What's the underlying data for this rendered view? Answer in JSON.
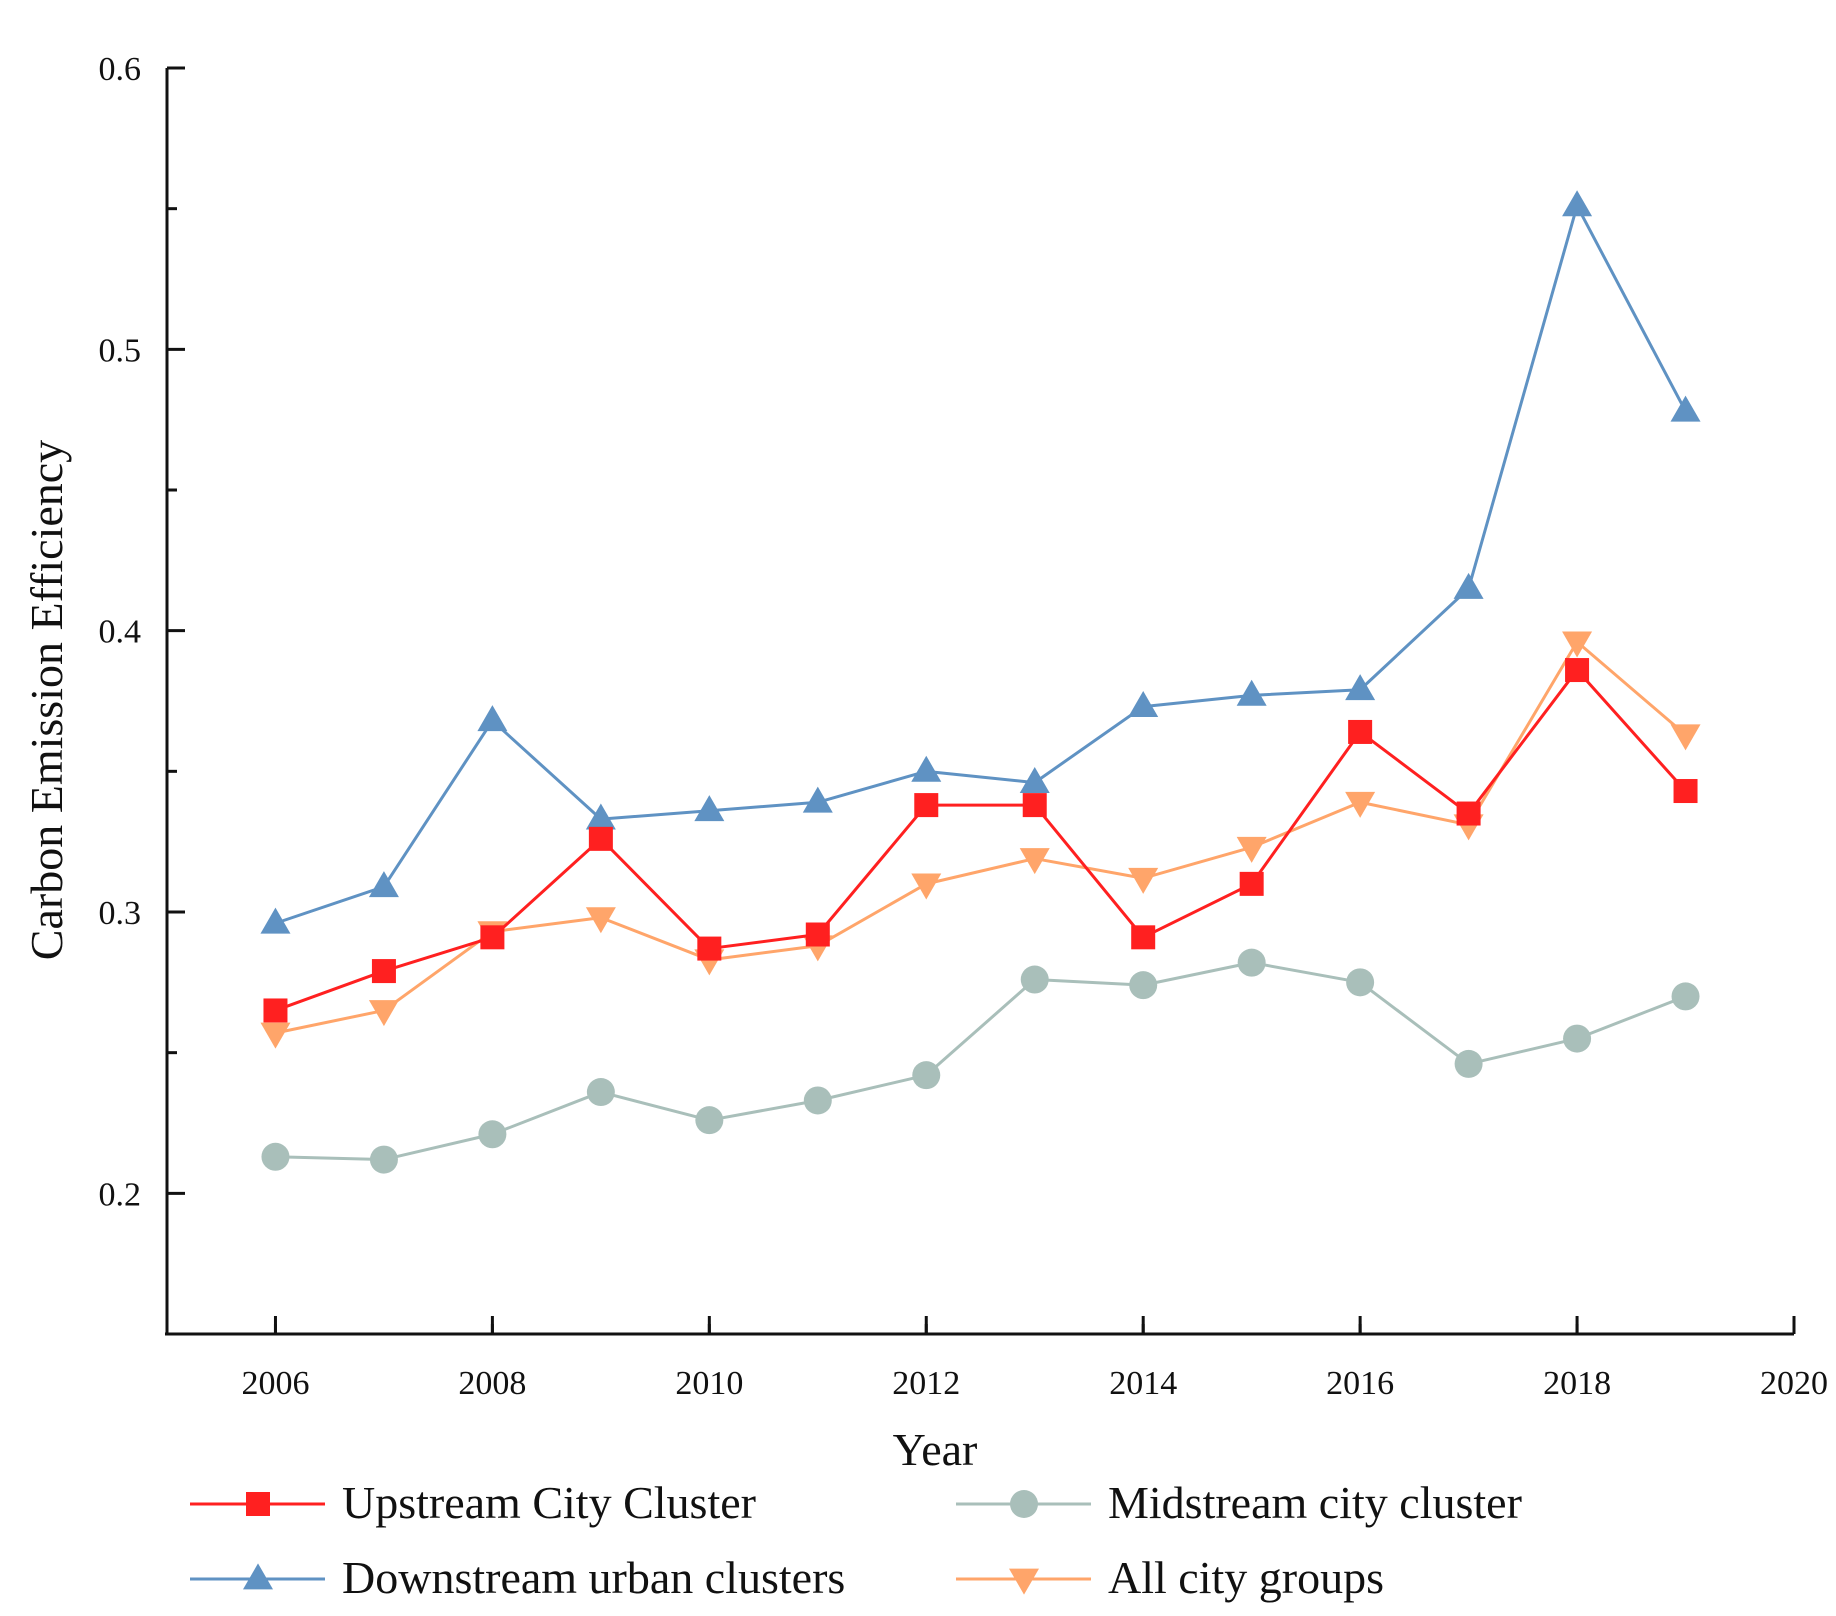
{
  "chart_data": {
    "type": "line",
    "title": "",
    "xlabel": "Year",
    "ylabel": "Carbon Emission Efficiency",
    "xlim": [
      2005,
      2020
    ],
    "ylim": [
      0.15,
      0.6
    ],
    "x_ticks": [
      "2006",
      "2008",
      "2010",
      "2012",
      "2014",
      "2016",
      "2018",
      "2020"
    ],
    "y_ticks": [
      "0.2",
      "0.3",
      "0.4",
      "0.5",
      "0.6"
    ],
    "x": [
      2006,
      2007,
      2008,
      2009,
      2010,
      2011,
      2012,
      2013,
      2014,
      2015,
      2016,
      2017,
      2018,
      2019
    ],
    "grid": false,
    "legend_position": "bottom",
    "series": [
      {
        "name": "Upstream City Cluster",
        "color": "#ff2020",
        "marker": "square",
        "values": [
          0.265,
          0.279,
          0.291,
          0.326,
          0.287,
          0.292,
          0.338,
          0.338,
          0.291,
          0.31,
          0.364,
          0.335,
          0.386,
          0.343
        ]
      },
      {
        "name": "Midstream city cluster",
        "color": "#a9bfba",
        "marker": "circle",
        "values": [
          0.213,
          0.212,
          0.221,
          0.236,
          0.226,
          0.233,
          0.242,
          0.276,
          0.274,
          0.282,
          0.275,
          0.246,
          0.255,
          0.27
        ]
      },
      {
        "name": "Downstream urban clusters",
        "color": "#5f92c3",
        "marker": "triangle-up",
        "values": [
          0.296,
          0.309,
          0.368,
          0.333,
          0.336,
          0.339,
          0.35,
          0.346,
          0.373,
          0.377,
          0.379,
          0.415,
          0.551,
          0.478
        ]
      },
      {
        "name": "All city groups",
        "color": "#ffa56a",
        "marker": "triangle-down",
        "values": [
          0.257,
          0.265,
          0.293,
          0.298,
          0.283,
          0.288,
          0.31,
          0.319,
          0.312,
          0.323,
          0.339,
          0.331,
          0.396,
          0.363
        ]
      }
    ]
  }
}
